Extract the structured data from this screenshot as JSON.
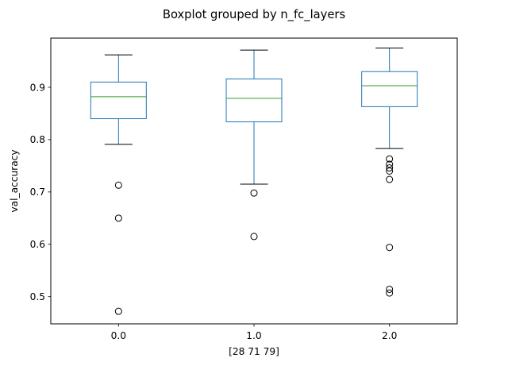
{
  "chart_data": {
    "type": "boxplot",
    "title": "Boxplot grouped by n_fc_layers",
    "xlabel": "[28 71 79]",
    "ylabel": "val_accuracy",
    "ylim": [
      0.448,
      0.994
    ],
    "yticks": [
      0.5,
      0.6,
      0.7,
      0.8,
      0.9
    ],
    "ytick_labels": [
      "0.5",
      "0.6",
      "0.7",
      "0.8",
      "0.9"
    ],
    "grid": false,
    "colors": {
      "box": "#1f77b4",
      "median": "#2ca02c",
      "whisker_cap": "#000000",
      "outlier": "#000000"
    },
    "groups": [
      {
        "label": "0.0",
        "whisker_low": 0.791,
        "q1": 0.84,
        "median": 0.882,
        "q3": 0.91,
        "whisker_high": 0.962,
        "outliers": [
          0.713,
          0.65,
          0.472
        ]
      },
      {
        "label": "1.0",
        "whisker_low": 0.715,
        "q1": 0.834,
        "median": 0.879,
        "q3": 0.916,
        "whisker_high": 0.971,
        "outliers": [
          0.698,
          0.615
        ]
      },
      {
        "label": "2.0",
        "whisker_low": 0.783,
        "q1": 0.863,
        "median": 0.903,
        "q3": 0.93,
        "whisker_high": 0.975,
        "outliers": [
          0.763,
          0.753,
          0.746,
          0.74,
          0.724,
          0.594,
          0.514,
          0.507
        ]
      }
    ]
  }
}
